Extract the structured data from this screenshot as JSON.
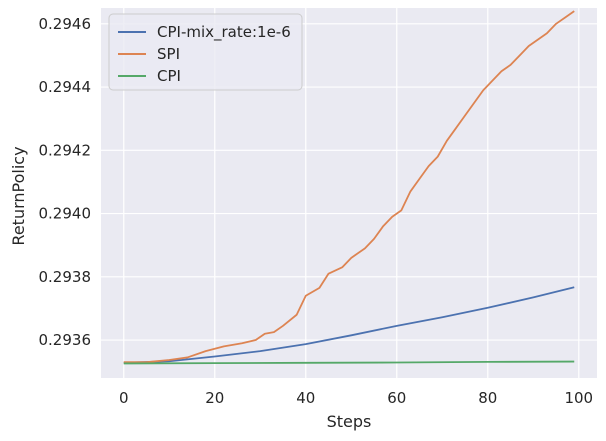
{
  "chart_data": {
    "type": "line",
    "title": "",
    "xlabel": "Steps",
    "ylabel": "ReturnPolicy",
    "xlim": [
      -5,
      104
    ],
    "ylim": [
      0.29348,
      0.29465
    ],
    "xticks": [
      0,
      20,
      40,
      60,
      80,
      100
    ],
    "yticks": [
      0.2936,
      0.2938,
      0.294,
      0.2942,
      0.2944,
      0.2946
    ],
    "ytick_labels": [
      "0.2936",
      "0.2938",
      "0.2940",
      "0.2942",
      "0.2944",
      "0.2946"
    ],
    "grid": true,
    "legend_position": "top-left",
    "background_color": "#eaeaf2",
    "series": [
      {
        "name": "CPI-mix_rate:1e-6",
        "color": "#4c72b0",
        "x": [
          0,
          10,
          20,
          30,
          40,
          50,
          60,
          70,
          80,
          90,
          99
        ],
        "y": [
          0.293528,
          0.293533,
          0.293548,
          0.293565,
          0.293587,
          0.293615,
          0.293645,
          0.293672,
          0.293702,
          0.293735,
          0.293767
        ]
      },
      {
        "name": "SPI",
        "color": "#dd8452",
        "x": [
          0,
          5,
          10,
          14,
          18,
          22,
          26,
          29,
          31,
          33,
          35,
          38,
          40,
          43,
          45,
          48,
          50,
          53,
          55,
          57,
          59,
          61,
          63,
          65,
          67,
          69,
          71,
          73,
          75,
          77,
          79,
          81,
          83,
          85,
          87,
          89,
          91,
          93,
          95,
          97,
          99
        ],
        "y": [
          0.29353,
          0.29353,
          0.293537,
          0.293545,
          0.293565,
          0.29358,
          0.29359,
          0.2936,
          0.29362,
          0.293625,
          0.293645,
          0.29368,
          0.29374,
          0.293765,
          0.29381,
          0.29383,
          0.29386,
          0.29389,
          0.29392,
          0.29396,
          0.29399,
          0.29401,
          0.29407,
          0.29411,
          0.29415,
          0.29418,
          0.29423,
          0.29427,
          0.29431,
          0.29435,
          0.29439,
          0.29442,
          0.29445,
          0.29447,
          0.2945,
          0.29453,
          0.29455,
          0.29457,
          0.2946,
          0.29462,
          0.29464
        ]
      },
      {
        "name": "CPI",
        "color": "#55a868",
        "x": [
          0,
          20,
          40,
          60,
          80,
          99
        ],
        "y": [
          0.293526,
          0.293527,
          0.293528,
          0.293529,
          0.293531,
          0.293532
        ]
      }
    ]
  }
}
